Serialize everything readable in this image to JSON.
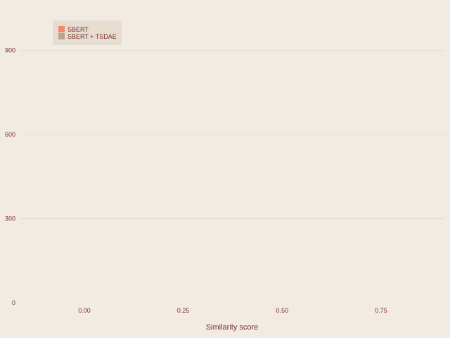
{
  "chart_data": {
    "type": "bar",
    "xlabel": "Similarity score",
    "ylabel": "",
    "xlim": [
      -0.16,
      0.91
    ],
    "ylim": [
      0,
      1080
    ],
    "x_ticks": [
      0.0,
      0.25,
      0.5,
      0.75
    ],
    "x_tick_labels": [
      "0.00",
      "0.25",
      "0.50",
      "0.75"
    ],
    "y_ticks": [
      0,
      300,
      600,
      900
    ],
    "y_tick_labels": [
      "0",
      "300",
      "600",
      "900"
    ],
    "grid": true,
    "legend_position": "top-left",
    "series": [
      {
        "name": "SBERT",
        "color": "#f08a68",
        "values": []
      },
      {
        "name": "SBERT + TSDAE",
        "color": "#b8a593",
        "values": []
      }
    ]
  },
  "colors": {
    "background": "#f2ebe4",
    "gridline": "#e6dace",
    "legend_background": "#e6dccf",
    "text": "#7a2e2e"
  }
}
